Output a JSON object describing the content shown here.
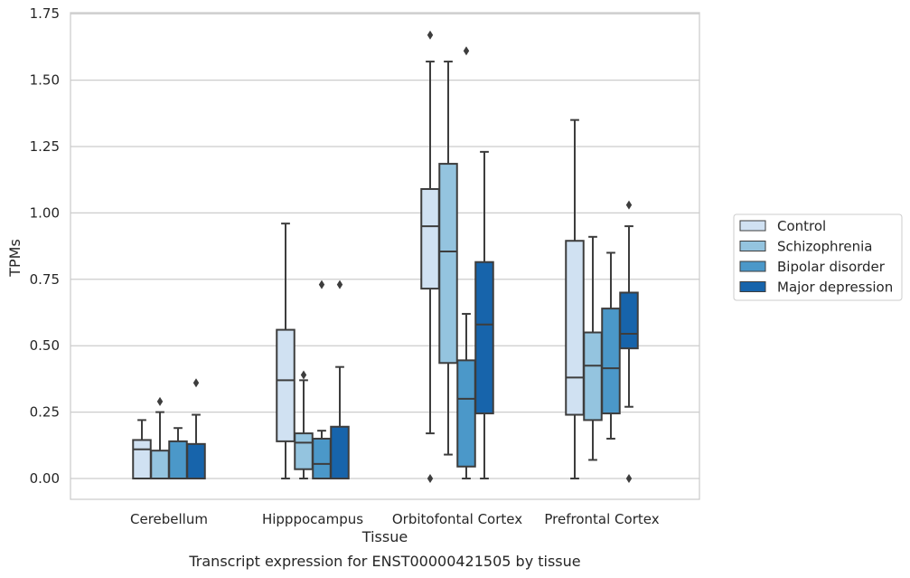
{
  "chart_data": {
    "type": "box",
    "title": "Transcript expression for ENST00000421505 by tissue",
    "xlabel": "Tissue",
    "ylabel": "TPMs",
    "ylim": [
      -0.08,
      1.75
    ],
    "yticks": [
      0.0,
      0.25,
      0.5,
      0.75,
      1.0,
      1.25,
      1.5,
      1.75
    ],
    "ytick_labels": [
      "0.00",
      "0.25",
      "0.50",
      "0.75",
      "1.00",
      "1.25",
      "1.50",
      "1.75"
    ],
    "grid": true,
    "legend_position": "right",
    "categories": [
      "Cerebellum",
      "Hipppocampus",
      "Orbitofontal Cortex",
      "Prefrontal Cortex"
    ],
    "series": [
      {
        "name": "Control",
        "color": "#d0e1f2",
        "boxes": [
          {
            "whislo": 0.0,
            "q1": 0.0,
            "med": 0.11,
            "q3": 0.145,
            "whishi": 0.22,
            "fliers": []
          },
          {
            "whislo": 0.0,
            "q1": 0.14,
            "med": 0.37,
            "q3": 0.56,
            "whishi": 0.96,
            "fliers": []
          },
          {
            "whislo": 0.17,
            "q1": 0.715,
            "med": 0.95,
            "q3": 1.09,
            "whishi": 1.57,
            "fliers": [
              1.67,
              0.0
            ]
          },
          {
            "whislo": 0.0,
            "q1": 0.24,
            "med": 0.38,
            "q3": 0.895,
            "whishi": 1.35,
            "fliers": []
          }
        ]
      },
      {
        "name": "Schizophrenia",
        "color": "#94c4df",
        "boxes": [
          {
            "whislo": 0.0,
            "q1": 0.0,
            "med": 0.0,
            "q3": 0.105,
            "whishi": 0.25,
            "fliers": [
              0.29
            ]
          },
          {
            "whislo": 0.0,
            "q1": 0.035,
            "med": 0.135,
            "q3": 0.17,
            "whishi": 0.37,
            "fliers": [
              0.39
            ]
          },
          {
            "whislo": 0.09,
            "q1": 0.435,
            "med": 0.855,
            "q3": 1.185,
            "whishi": 1.57,
            "fliers": []
          },
          {
            "whislo": 0.07,
            "q1": 0.22,
            "med": 0.425,
            "q3": 0.55,
            "whishi": 0.91,
            "fliers": []
          }
        ]
      },
      {
        "name": "Bipolar disorder",
        "color": "#4b98c9",
        "boxes": [
          {
            "whislo": 0.0,
            "q1": 0.0,
            "med": 0.0,
            "q3": 0.14,
            "whishi": 0.19,
            "fliers": []
          },
          {
            "whislo": 0.0,
            "q1": 0.0,
            "med": 0.055,
            "q3": 0.15,
            "whishi": 0.18,
            "fliers": [
              0.73
            ]
          },
          {
            "whislo": 0.0,
            "q1": 0.045,
            "med": 0.3,
            "q3": 0.445,
            "whishi": 0.62,
            "fliers": [
              1.61
            ]
          },
          {
            "whislo": 0.15,
            "q1": 0.245,
            "med": 0.415,
            "q3": 0.64,
            "whishi": 0.85,
            "fliers": []
          }
        ]
      },
      {
        "name": "Major depression",
        "color": "#1764ab",
        "boxes": [
          {
            "whislo": 0.0,
            "q1": 0.0,
            "med": 0.0,
            "q3": 0.13,
            "whishi": 0.24,
            "fliers": [
              0.36
            ]
          },
          {
            "whislo": 0.0,
            "q1": 0.0,
            "med": 0.0,
            "q3": 0.195,
            "whishi": 0.42,
            "fliers": [
              0.73
            ]
          },
          {
            "whislo": 0.0,
            "q1": 0.245,
            "med": 0.58,
            "q3": 0.815,
            "whishi": 1.23,
            "fliers": []
          },
          {
            "whislo": 0.27,
            "q1": 0.49,
            "med": 0.545,
            "q3": 0.7,
            "whishi": 0.95,
            "fliers": [
              1.03,
              0.0
            ]
          }
        ]
      }
    ]
  }
}
